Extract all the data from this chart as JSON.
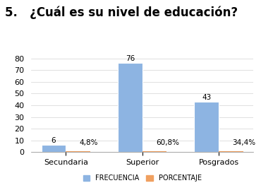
{
  "title": "5.   ¿Cuál es su nivel de educación?",
  "categories": [
    "Secundaria",
    "Superior",
    "Posgrados"
  ],
  "frecuencia": [
    6,
    76,
    43
  ],
  "porcentaje_display": [
    0.5,
    0.5,
    0.5
  ],
  "frecuencia_labels": [
    "6",
    "76",
    "43"
  ],
  "porcentaje_labels": [
    "4,8%",
    "60,8%",
    "34,4%"
  ],
  "bar_color_freq": "#8DB4E2",
  "bar_color_pct": "#F0A060",
  "ylim": [
    0,
    85
  ],
  "yticks": [
    0,
    10,
    20,
    30,
    40,
    50,
    60,
    70,
    80
  ],
  "legend_freq": "FRECUENCIA",
  "legend_pct": "PORCENTAJE",
  "title_fontsize": 12,
  "tick_fontsize": 8,
  "label_fontsize": 7.5,
  "legend_fontsize": 7
}
